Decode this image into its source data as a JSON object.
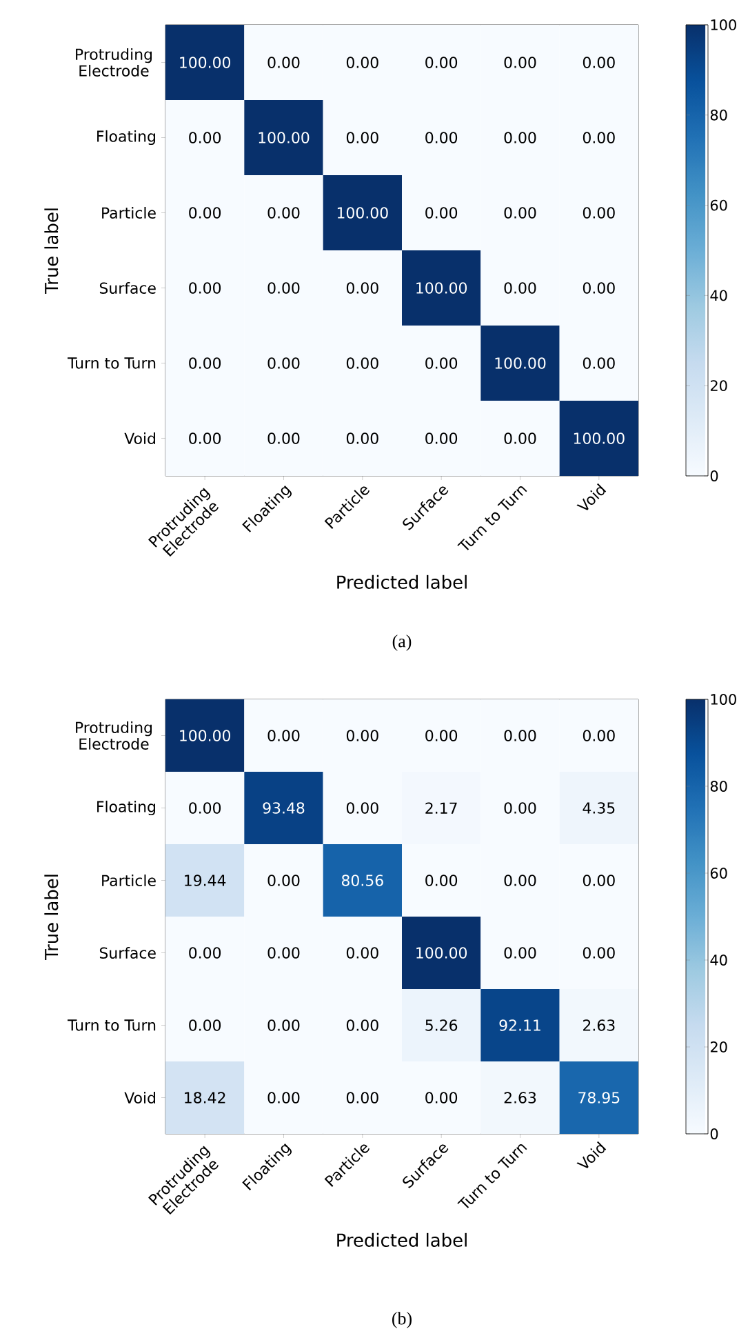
{
  "chart_data": [
    {
      "type": "heatmap",
      "xlabel": "Predicted label",
      "ylabel": "True label",
      "categories": [
        "Protruding Electrode",
        "Floating",
        "Particle",
        "Surface",
        "Turn to Turn",
        "Void"
      ],
      "y_categories": [
        "Protruding Electrode",
        "Floating",
        "Particle",
        "Surface",
        "Turn to Turn",
        "Void"
      ],
      "cells": [
        [
          100,
          0,
          0,
          0,
          0,
          0
        ],
        [
          0,
          100,
          0,
          0,
          0,
          0
        ],
        [
          0,
          0,
          100,
          0,
          0,
          0
        ],
        [
          0,
          0,
          0,
          100,
          0,
          0
        ],
        [
          0,
          0,
          0,
          0,
          100,
          0
        ],
        [
          0,
          0,
          0,
          0,
          0,
          100
        ]
      ],
      "cell_labels": [
        [
          "100.00",
          "0.00",
          "0.00",
          "0.00",
          "0.00",
          "0.00"
        ],
        [
          "0.00",
          "100.00",
          "0.00",
          "0.00",
          "0.00",
          "0.00"
        ],
        [
          "0.00",
          "0.00",
          "100.00",
          "0.00",
          "0.00",
          "0.00"
        ],
        [
          "0.00",
          "0.00",
          "0.00",
          "100.00",
          "0.00",
          "0.00"
        ],
        [
          "0.00",
          "0.00",
          "0.00",
          "0.00",
          "100.00",
          "0.00"
        ],
        [
          "0.00",
          "0.00",
          "0.00",
          "0.00",
          "0.00",
          "100.00"
        ]
      ],
      "clim": [
        0,
        100
      ],
      "cticks": [
        0,
        20,
        40,
        60,
        80,
        100
      ],
      "annotations": [
        "(a)"
      ]
    },
    {
      "type": "heatmap",
      "xlabel": "Predicted label",
      "ylabel": "True label",
      "categories": [
        "Protruding Electrode",
        "Floating",
        "Particle",
        "Surface",
        "Turn to Turn",
        "Void"
      ],
      "y_categories": [
        "Protruding Electrode",
        "Floating",
        "Particle",
        "Surface",
        "Turn to Turn",
        "Void"
      ],
      "cells": [
        [
          100,
          0,
          0,
          0,
          0,
          0
        ],
        [
          0,
          93.48,
          0,
          2.17,
          0,
          4.35
        ],
        [
          19.44,
          0,
          80.56,
          0,
          0,
          0
        ],
        [
          0,
          0,
          0,
          100,
          0,
          0
        ],
        [
          0,
          0,
          0,
          5.26,
          92.11,
          2.63
        ],
        [
          18.42,
          0,
          0,
          0,
          2.63,
          78.95
        ]
      ],
      "cell_labels": [
        [
          "100.00",
          "0.00",
          "0.00",
          "0.00",
          "0.00",
          "0.00"
        ],
        [
          "0.00",
          "93.48",
          "0.00",
          "2.17",
          "0.00",
          "4.35"
        ],
        [
          "19.44",
          "0.00",
          "80.56",
          "0.00",
          "0.00",
          "0.00"
        ],
        [
          "0.00",
          "0.00",
          "0.00",
          "100.00",
          "0.00",
          "0.00"
        ],
        [
          "0.00",
          "0.00",
          "0.00",
          "5.26",
          "92.11",
          "2.63"
        ],
        [
          "18.42",
          "0.00",
          "0.00",
          "0.00",
          "2.63",
          "78.95"
        ]
      ],
      "clim": [
        0,
        100
      ],
      "cticks": [
        0,
        20,
        40,
        60,
        80,
        100
      ],
      "annotations": [
        "(b)"
      ]
    }
  ]
}
